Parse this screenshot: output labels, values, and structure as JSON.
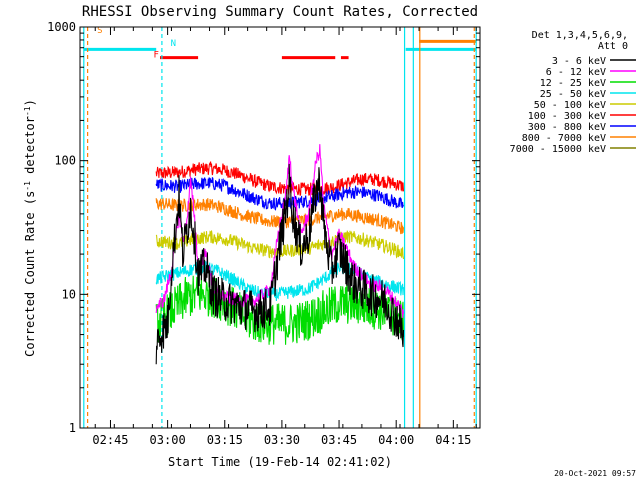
{
  "chart_data": {
    "type": "line",
    "title": "RHESSI Observing Summary Count Rates, Corrected",
    "xlabel": "Start Time (19-Feb-14 02:41:02)",
    "ylabel_parts": [
      "Corrected Count Rate (s",
      "-1",
      " detector",
      "-1",
      ")"
    ],
    "yscale": "log",
    "ylim": [
      1,
      1000
    ],
    "xlim_minutes": [
      -19,
      1245
    ],
    "xlim_note": "minutes after 02:41 on a 02:41–04:21 axis",
    "xlim": [
      "02:41",
      "04:21"
    ],
    "x_ticks": [
      {
        "label": "02:45",
        "t": 4
      },
      {
        "label": "03:00",
        "t": 19
      },
      {
        "label": "03:15",
        "t": 34
      },
      {
        "label": "03:30",
        "t": 49
      },
      {
        "label": "03:45",
        "t": 64
      },
      {
        "label": "04:00",
        "t": 79
      },
      {
        "label": "04:15",
        "t": 94
      }
    ],
    "y_ticks": [
      {
        "label": "1",
        "v": 1
      },
      {
        "label": "10",
        "v": 10
      },
      {
        "label": "100",
        "v": 100
      },
      {
        "label": "1000",
        "v": 1000
      }
    ],
    "legend": {
      "position": "top-right",
      "header": [
        "Det 1,3,4,5,6,9,",
        "Att 0"
      ],
      "entries": [
        {
          "label": "3 - 6 keV",
          "color": "#000000"
        },
        {
          "label": "6 - 12 keV",
          "color": "#ff00ff"
        },
        {
          "label": "12 - 25 keV",
          "color": "#00dd00"
        },
        {
          "label": "25 - 50 keV",
          "color": "#00e5ee"
        },
        {
          "label": "50 - 100 keV",
          "color": "#cccc00"
        },
        {
          "label": "100 - 300 keV",
          "color": "#ff0000"
        },
        {
          "label": "300 - 800 keV",
          "color": "#0000ff"
        },
        {
          "label": "800 - 7000 keV",
          "color": "#ff8000"
        },
        {
          "label": "7000 - 15000 keV",
          "color": "#808000"
        }
      ]
    },
    "series": [
      {
        "name": "100 - 300 keV",
        "color": "#ff0000",
        "t_start": 16,
        "t_end": 81,
        "points": [
          [
            16,
            80
          ],
          [
            22,
            82
          ],
          [
            26,
            86
          ],
          [
            30,
            88
          ],
          [
            34,
            85
          ],
          [
            38,
            78
          ],
          [
            42,
            70
          ],
          [
            46,
            64
          ],
          [
            50,
            62
          ],
          [
            56,
            61
          ],
          [
            62,
            63
          ],
          [
            66,
            68
          ],
          [
            70,
            73
          ],
          [
            74,
            72
          ],
          [
            78,
            68
          ],
          [
            81,
            64
          ]
        ]
      },
      {
        "name": "300 - 800 keV",
        "color": "#0000ff",
        "t_start": 16,
        "t_end": 81,
        "points": [
          [
            16,
            66
          ],
          [
            22,
            64
          ],
          [
            26,
            67
          ],
          [
            30,
            68
          ],
          [
            34,
            65
          ],
          [
            38,
            58
          ],
          [
            42,
            52
          ],
          [
            46,
            48
          ],
          [
            50,
            48
          ],
          [
            56,
            50
          ],
          [
            62,
            54
          ],
          [
            66,
            58
          ],
          [
            70,
            58
          ],
          [
            74,
            55
          ],
          [
            78,
            50
          ],
          [
            81,
            46
          ]
        ]
      },
      {
        "name": "800 - 7000 keV",
        "color": "#ff8000",
        "t_start": 16,
        "t_end": 81,
        "points": [
          [
            16,
            48
          ],
          [
            22,
            46
          ],
          [
            26,
            47
          ],
          [
            30,
            47
          ],
          [
            34,
            44
          ],
          [
            38,
            40
          ],
          [
            42,
            37
          ],
          [
            46,
            35
          ],
          [
            50,
            35
          ],
          [
            56,
            36
          ],
          [
            62,
            39
          ],
          [
            66,
            40
          ],
          [
            70,
            38
          ],
          [
            74,
            36
          ],
          [
            78,
            33
          ],
          [
            81,
            31
          ]
        ]
      },
      {
        "name": "50 - 100 keV",
        "color": "#cccc00",
        "t_start": 16,
        "t_end": 81,
        "points": [
          [
            16,
            25
          ],
          [
            22,
            24
          ],
          [
            26,
            26
          ],
          [
            30,
            27
          ],
          [
            34,
            26
          ],
          [
            38,
            24
          ],
          [
            42,
            22
          ],
          [
            46,
            21
          ],
          [
            50,
            21
          ],
          [
            56,
            22
          ],
          [
            62,
            25
          ],
          [
            66,
            27
          ],
          [
            70,
            26
          ],
          [
            74,
            24
          ],
          [
            78,
            22
          ],
          [
            81,
            20
          ]
        ]
      },
      {
        "name": "25 - 50 keV",
        "color": "#00e5ee",
        "t_start": 16,
        "t_end": 81,
        "points": [
          [
            16,
            13
          ],
          [
            20,
            14
          ],
          [
            24,
            15
          ],
          [
            28,
            16
          ],
          [
            32,
            15
          ],
          [
            36,
            13
          ],
          [
            40,
            11
          ],
          [
            44,
            10
          ],
          [
            48,
            10
          ],
          [
            52,
            10.5
          ],
          [
            56,
            11
          ],
          [
            60,
            13
          ],
          [
            64,
            16
          ],
          [
            68,
            15
          ],
          [
            72,
            13
          ],
          [
            76,
            12
          ],
          [
            80,
            11
          ],
          [
            81,
            11
          ]
        ]
      },
      {
        "name": "12 - 25 keV",
        "color": "#00dd00",
        "t_start": 16,
        "t_end": 81,
        "points": [
          [
            16,
            6
          ],
          [
            20,
            7.5
          ],
          [
            24,
            9.5
          ],
          [
            28,
            10
          ],
          [
            32,
            9.5
          ],
          [
            36,
            8
          ],
          [
            40,
            6.5
          ],
          [
            44,
            6
          ],
          [
            48,
            6
          ],
          [
            52,
            6
          ],
          [
            56,
            6.5
          ],
          [
            60,
            7.5
          ],
          [
            64,
            8.5
          ],
          [
            68,
            8.5
          ],
          [
            72,
            8
          ],
          [
            76,
            7.5
          ],
          [
            80,
            6.5
          ],
          [
            81,
            6
          ]
        ]
      },
      {
        "name": "6 - 12 keV",
        "color": "#ff00ff",
        "t_start": 16,
        "t_end": 81,
        "points": [
          [
            16,
            8
          ],
          [
            18,
            9
          ],
          [
            20,
            15
          ],
          [
            22,
            40
          ],
          [
            23,
            25
          ],
          [
            24,
            35
          ],
          [
            25,
            70
          ],
          [
            26,
            40
          ],
          [
            27,
            16
          ],
          [
            29,
            20
          ],
          [
            31,
            11
          ],
          [
            34,
            9.5
          ],
          [
            38,
            9
          ],
          [
            42,
            9
          ],
          [
            46,
            11
          ],
          [
            48,
            28
          ],
          [
            50,
            55
          ],
          [
            51,
            110
          ],
          [
            52,
            60
          ],
          [
            54,
            28
          ],
          [
            56,
            40
          ],
          [
            58,
            100
          ],
          [
            59,
            120
          ],
          [
            60,
            45
          ],
          [
            62,
            20
          ],
          [
            64,
            28
          ],
          [
            66,
            22
          ],
          [
            68,
            16
          ],
          [
            70,
            14
          ],
          [
            72,
            12
          ],
          [
            76,
            11
          ],
          [
            80,
            8
          ],
          [
            81,
            7
          ]
        ]
      },
      {
        "name": "3 - 6 keV",
        "color": "#000000",
        "t_start": 16,
        "t_end": 81,
        "points": [
          [
            16,
            4
          ],
          [
            17,
            5
          ],
          [
            19,
            6
          ],
          [
            20,
            15
          ],
          [
            22,
            55
          ],
          [
            23,
            20
          ],
          [
            24,
            30
          ],
          [
            25,
            45
          ],
          [
            26,
            28
          ],
          [
            27,
            14
          ],
          [
            29,
            16
          ],
          [
            31,
            10
          ],
          [
            34,
            9
          ],
          [
            38,
            8
          ],
          [
            42,
            7.5
          ],
          [
            46,
            8
          ],
          [
            48,
            20
          ],
          [
            50,
            42
          ],
          [
            51,
            70
          ],
          [
            52,
            38
          ],
          [
            54,
            22
          ],
          [
            56,
            28
          ],
          [
            58,
            60
          ],
          [
            59,
            70
          ],
          [
            60,
            32
          ],
          [
            62,
            15
          ],
          [
            64,
            22
          ],
          [
            66,
            16
          ],
          [
            68,
            12
          ],
          [
            70,
            11
          ],
          [
            72,
            10
          ],
          [
            76,
            9
          ],
          [
            80,
            6
          ],
          [
            81,
            4.5
          ]
        ]
      }
    ],
    "annotations": [
      {
        "label": "S",
        "t": 1.2,
        "v": 900,
        "color": "#ff8000"
      },
      {
        "label": "N",
        "t": 20.5,
        "v": 720,
        "color": "#00e5ee"
      },
      {
        "label": "F",
        "t": 16,
        "v": 590,
        "color": "#ff0000"
      }
    ],
    "timestamp": "20-Oct-2021 09:57"
  }
}
